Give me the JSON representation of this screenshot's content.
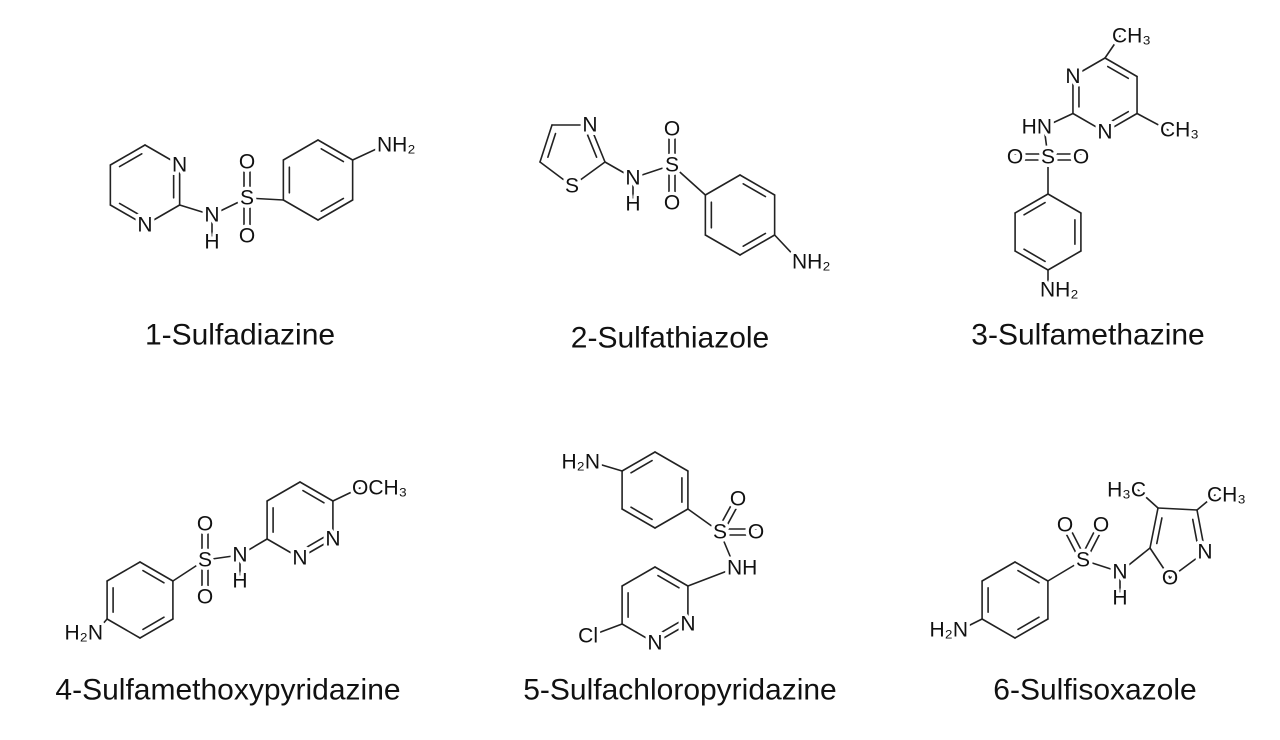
{
  "molecules": [
    {
      "name": "1-Sulfadiazine",
      "atoms": [
        "N",
        "N",
        "N",
        "H",
        "S",
        "O",
        "O",
        "NH₂"
      ]
    },
    {
      "name": "2-Sulfathiazole",
      "atoms": [
        "N",
        "S",
        "N",
        "H",
        "S",
        "O",
        "O",
        "NH₂"
      ]
    },
    {
      "name": "3-Sulfamethazine",
      "atoms": [
        "CH₃",
        "N",
        "N",
        "CH₃",
        "HN",
        "O",
        "S",
        "O",
        "NH₂"
      ]
    },
    {
      "name": "4-Sulfamethoxypyridazine",
      "atoms": [
        "O",
        "S",
        "O",
        "N",
        "H",
        "N",
        "N",
        "OCH₃",
        "H₂N"
      ]
    },
    {
      "name": "5-Sulfachloropyridazine",
      "atoms": [
        "H₂N",
        "S",
        "O",
        "O",
        "NH",
        "Cl",
        "N",
        "N"
      ]
    },
    {
      "name": "6-Sulfisoxazole",
      "atoms": [
        "H₃C",
        "CH₃",
        "O",
        "O",
        "S",
        "N",
        "H",
        "N",
        "O",
        "H₂N"
      ]
    }
  ]
}
